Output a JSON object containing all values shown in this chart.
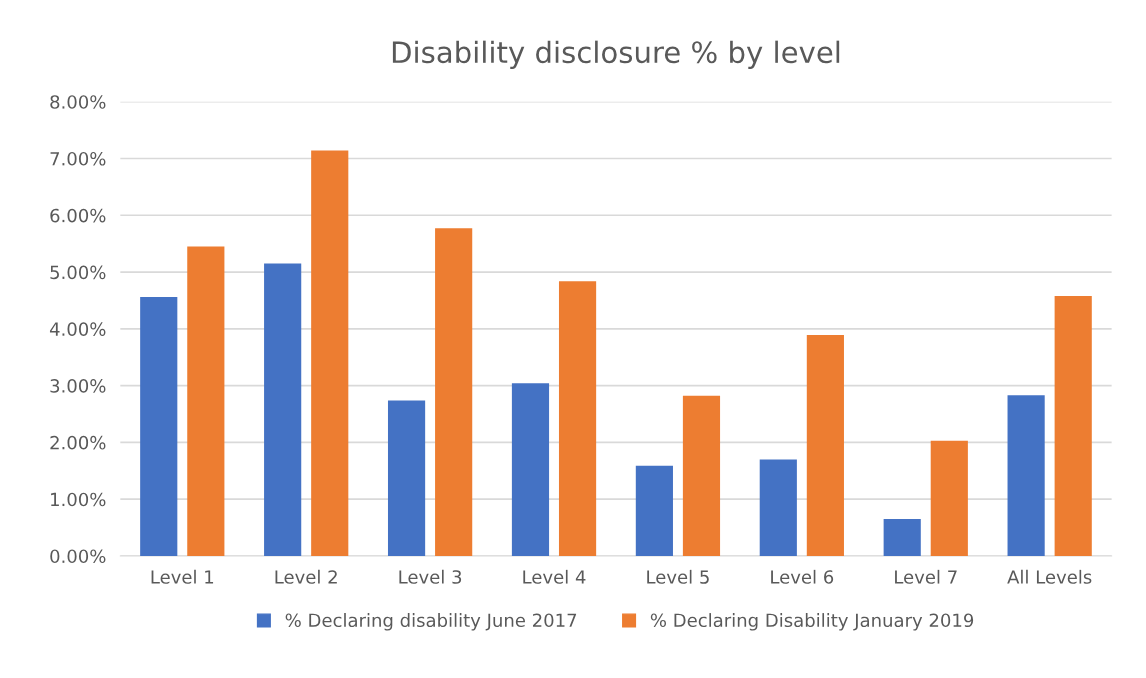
{
  "chart_data": {
    "type": "bar",
    "title": "Disability disclosure % by level",
    "categories": [
      "Level 1",
      "Level 2",
      "Level 3",
      "Level 4",
      "Level 5",
      "Level 6",
      "Level 7",
      "All Levels"
    ],
    "series": [
      {
        "name": "% Declaring disability June 2017",
        "color": "#4472c4",
        "values": [
          4.56,
          5.15,
          2.74,
          3.04,
          1.59,
          1.7,
          0.65,
          2.83
        ]
      },
      {
        "name": "% Declaring Disability January 2019",
        "color": "#ed7d31",
        "values": [
          5.45,
          7.14,
          5.77,
          4.84,
          2.82,
          3.89,
          2.03,
          4.58
        ]
      }
    ],
    "ylim": [
      0,
      8
    ],
    "yticks": [
      {
        "value": 0,
        "label": "0.00%"
      },
      {
        "value": 1,
        "label": "1.00%"
      },
      {
        "value": 2,
        "label": "2.00%"
      },
      {
        "value": 3,
        "label": "3.00%"
      },
      {
        "value": 4,
        "label": "4.00%"
      },
      {
        "value": 5,
        "label": "5.00%"
      },
      {
        "value": 6,
        "label": "6.00%"
      },
      {
        "value": 7,
        "label": "7.00%"
      },
      {
        "value": 8,
        "label": "8.00%"
      }
    ],
    "grid": "y",
    "legend": "bottom"
  }
}
